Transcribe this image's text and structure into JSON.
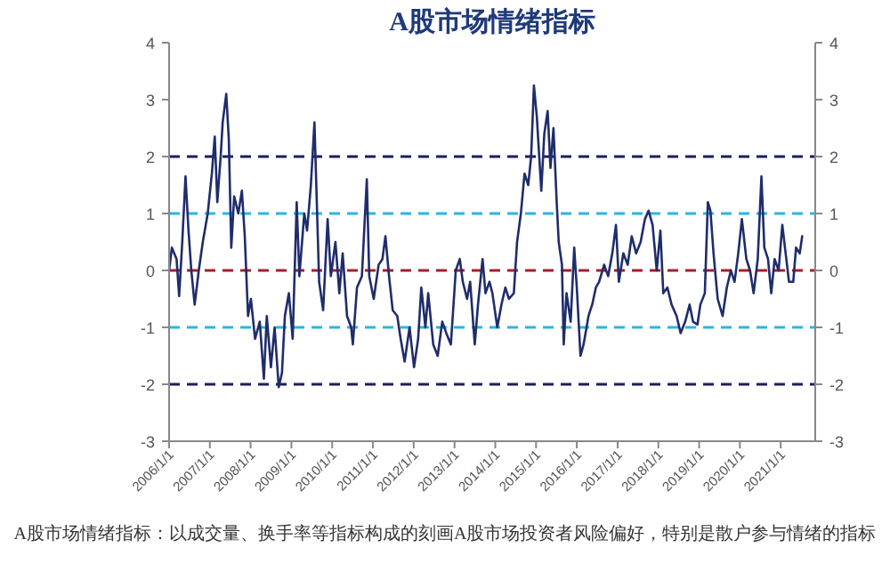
{
  "chart_data": {
    "type": "line",
    "title": "A股市场情绪指标",
    "annotations": [
      "A股市场情绪指标：以成交量、换手率等指标构成的刻画A股市场投资者风险偏好，特别是散户参与情绪的指标"
    ],
    "xlim": [
      "2006-01-01",
      "2021-11-06"
    ],
    "xticks": [
      {
        "value": "2006-01-01",
        "label": "2006/1/1"
      },
      {
        "value": "2007-01-01",
        "label": "2007/1/1"
      },
      {
        "value": "2008-01-01",
        "label": "2008/1/1"
      },
      {
        "value": "2009-01-01",
        "label": "2009/1/1"
      },
      {
        "value": "2010-01-01",
        "label": "2010/1/1"
      },
      {
        "value": "2011-01-01",
        "label": "2011/1/1"
      },
      {
        "value": "2012-01-01",
        "label": "2012/1/1"
      },
      {
        "value": "2013-01-01",
        "label": "2013/1/1"
      },
      {
        "value": "2014-01-01",
        "label": "2014/1/1"
      },
      {
        "value": "2015-01-01",
        "label": "2015/1/1"
      },
      {
        "value": "2016-01-01",
        "label": "2016/1/1"
      },
      {
        "value": "2017-01-01",
        "label": "2017/1/1"
      },
      {
        "value": "2018-01-01",
        "label": "2018/1/1"
      },
      {
        "value": "2019-01-01",
        "label": "2019/1/1"
      },
      {
        "value": "2020-01-01",
        "label": "2020/1/1"
      },
      {
        "value": "2021-01-01",
        "label": "2021/1/1"
      }
    ],
    "ylim": [
      -3,
      4
    ],
    "yticks": [
      -3,
      -2,
      -1,
      0,
      1,
      2,
      3,
      4
    ],
    "y2lim": [
      -3,
      4
    ],
    "y2ticks": [
      -3,
      -2,
      -1,
      0,
      1,
      2,
      3,
      4
    ],
    "ref_lines": [
      {
        "axis": "y",
        "value": 2,
        "color": "#1b1f5e",
        "line_style": "dashed"
      },
      {
        "axis": "y",
        "value": 1,
        "color": "#2bb5e0",
        "line_style": "dashed"
      },
      {
        "axis": "y",
        "value": 0,
        "color": "#a3202b",
        "line_style": "dashed"
      },
      {
        "axis": "y",
        "value": -1,
        "color": "#2bb5e0",
        "line_style": "dashed"
      },
      {
        "axis": "y",
        "value": -2,
        "color": "#1b1f5e",
        "line_style": "dashed"
      }
    ],
    "series": [
      {
        "color": "#1f2d6b",
        "x": [
          "2006-01-01",
          "2006-01-26",
          "2006-03-09",
          "2006-04-01",
          "2006-04-29",
          "2006-05-28",
          "2006-06-24",
          "2006-07-19",
          "2006-08-18",
          "2006-09-24",
          "2006-10-30",
          "2006-12-13",
          "2007-01-19",
          "2007-02-14",
          "2007-03-09",
          "2007-04-08",
          "2007-04-26",
          "2007-05-28",
          "2007-06-20",
          "2007-07-12",
          "2007-08-07",
          "2007-09-13",
          "2007-10-15",
          "2007-11-10",
          "2007-12-09",
          "2008-01-04",
          "2008-02-10",
          "2008-03-23",
          "2008-04-29",
          "2008-05-25",
          "2008-07-01",
          "2008-08-03",
          "2008-09-09",
          "2008-10-08",
          "2008-11-03",
          "2008-12-09",
          "2009-01-12",
          "2009-02-17",
          "2009-03-13",
          "2009-04-26",
          "2009-05-21",
          "2009-06-24",
          "2009-07-26",
          "2009-09-06",
          "2009-10-12",
          "2009-11-21",
          "2009-12-20",
          "2010-01-30",
          "2010-03-06",
          "2010-04-05",
          "2010-05-14",
          "2010-06-20",
          "2010-07-05",
          "2010-08-11",
          "2010-09-24",
          "2010-11-07",
          "2010-11-29",
          "2011-01-08",
          "2011-02-21",
          "2011-03-27",
          "2011-04-23",
          "2011-05-25",
          "2011-06-27",
          "2011-08-07",
          "2011-09-06",
          "2011-10-12",
          "2011-11-25",
          "2012-01-04",
          "2012-02-10",
          "2012-03-09",
          "2012-04-15",
          "2012-05-10",
          "2012-06-24",
          "2012-08-03",
          "2012-09-13",
          "2012-10-19",
          "2012-11-29",
          "2013-01-12",
          "2013-02-17",
          "2013-03-16",
          "2013-04-23",
          "2013-05-21",
          "2013-07-01",
          "2013-07-30",
          "2013-09-09",
          "2013-10-05",
          "2013-11-10",
          "2013-12-06",
          "2014-01-19",
          "2014-02-25",
          "2014-04-01",
          "2014-05-03",
          "2014-06-16",
          "2014-07-15",
          "2014-08-18",
          "2014-09-20",
          "2014-10-23",
          "2014-11-18",
          "2014-12-13",
          "2015-01-08",
          "2015-02-17",
          "2015-03-16",
          "2015-04-15",
          "2015-05-10",
          "2015-06-06",
          "2015-07-05",
          "2015-07-23",
          "2015-08-21",
          "2015-09-06",
          "2015-10-01",
          "2015-11-07",
          "2015-12-09",
          "2016-01-01",
          "2016-02-03",
          "2016-03-02",
          "2016-04-15",
          "2016-05-18",
          "2016-06-20",
          "2016-07-19",
          "2016-09-02",
          "2016-10-08",
          "2016-11-14",
          "2016-12-17",
          "2017-01-12",
          "2017-02-21",
          "2017-04-01",
          "2017-05-07",
          "2017-06-16",
          "2017-07-26",
          "2017-09-02",
          "2017-10-05",
          "2017-11-10",
          "2017-12-17",
          "2018-01-19",
          "2018-02-14",
          "2018-03-23",
          "2018-04-29",
          "2018-06-13",
          "2018-07-19",
          "2018-08-29",
          "2018-10-08",
          "2018-11-07",
          "2018-12-17",
          "2019-01-12",
          "2019-02-21",
          "2019-03-20",
          "2019-04-12",
          "2019-05-10",
          "2019-06-16",
          "2019-07-30",
          "2019-09-06",
          "2019-10-12",
          "2019-11-14",
          "2019-12-17",
          "2020-01-19",
          "2020-02-28",
          "2020-04-01",
          "2020-05-03",
          "2020-06-09",
          "2020-07-12",
          "2020-08-07",
          "2020-09-09",
          "2020-10-08",
          "2020-11-07",
          "2020-12-13",
          "2021-01-15",
          "2021-02-14",
          "2021-03-16",
          "2021-04-23",
          "2021-05-18",
          "2021-06-20",
          "2021-07-12"
        ],
        "values": [
          0.0,
          0.4,
          0.2,
          -0.45,
          0.5,
          1.65,
          0.7,
          0.0,
          -0.6,
          0.0,
          0.5,
          1.0,
          1.7,
          2.35,
          1.2,
          2.0,
          2.6,
          3.1,
          2.3,
          0.4,
          1.3,
          1.0,
          1.4,
          0.6,
          -0.8,
          -0.5,
          -1.2,
          -0.9,
          -1.9,
          -0.8,
          -1.7,
          -1.0,
          -2.05,
          -1.8,
          -0.8,
          -0.4,
          -1.2,
          1.2,
          -0.1,
          1.0,
          0.7,
          1.5,
          2.6,
          -0.2,
          -0.7,
          0.9,
          -0.1,
          0.5,
          -0.4,
          0.3,
          -0.8,
          -1.0,
          -1.3,
          -0.3,
          -0.1,
          1.6,
          -0.1,
          -0.5,
          0.1,
          0.2,
          0.6,
          -0.1,
          -0.7,
          -0.8,
          -1.2,
          -1.6,
          -1.0,
          -1.7,
          -1.2,
          -0.3,
          -1.0,
          -0.4,
          -1.3,
          -1.5,
          -0.9,
          -1.1,
          -1.3,
          0.0,
          0.2,
          -0.2,
          -0.5,
          -0.2,
          -1.3,
          -0.6,
          0.2,
          -0.4,
          -0.2,
          -0.4,
          -1.0,
          -0.6,
          -0.3,
          -0.5,
          -0.4,
          0.5,
          1.0,
          1.7,
          1.5,
          2.0,
          3.25,
          2.7,
          1.4,
          2.4,
          2.8,
          1.8,
          2.5,
          1.2,
          0.5,
          0.1,
          -1.3,
          -0.4,
          -0.9,
          0.4,
          -0.3,
          -1.5,
          -1.3,
          -0.8,
          -0.6,
          -0.3,
          -0.2,
          0.1,
          -0.1,
          0.3,
          0.8,
          -0.2,
          0.3,
          0.1,
          0.6,
          0.3,
          0.5,
          0.9,
          1.05,
          0.8,
          0.0,
          0.7,
          -0.4,
          -0.3,
          -0.6,
          -0.8,
          -1.1,
          -0.9,
          -0.6,
          -0.9,
          -0.95,
          -0.6,
          -0.4,
          1.2,
          1.05,
          0.3,
          -0.5,
          -0.8,
          -0.3,
          0.0,
          -0.2,
          0.3,
          0.9,
          0.2,
          0.0,
          -0.4,
          0.2,
          1.65,
          0.4,
          0.2,
          -0.4,
          0.2,
          0.0,
          0.8,
          0.3,
          -0.2,
          -0.2,
          0.4,
          0.3,
          0.6
        ]
      }
    ]
  }
}
